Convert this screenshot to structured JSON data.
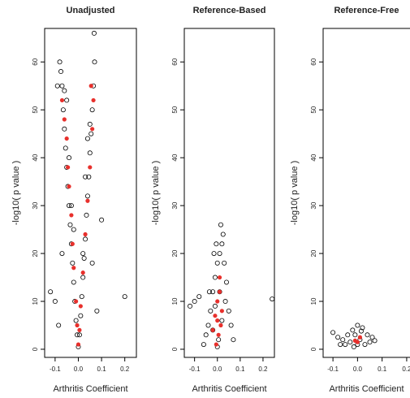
{
  "chart_data": [
    {
      "type": "scatter",
      "title": "Unadjusted",
      "x_label": "Arthritis Coefficient",
      "y_label": "-log10( p value )",
      "xlim": [
        -0.145,
        0.25
      ],
      "ylim": [
        -1.7,
        67
      ],
      "xticks": [
        -0.1,
        {
          "value": 0,
          "label": "0.0"
        },
        0.1,
        0.2
      ],
      "yticks": [
        0,
        10,
        20,
        30,
        40,
        50,
        60
      ],
      "series": [
        {
          "color": "#000000",
          "marker": "open",
          "x": [
            -0.08,
            -0.075,
            -0.07,
            -0.065,
            -0.06,
            -0.055,
            -0.05,
            -0.045,
            -0.04,
            -0.035,
            -0.03,
            -0.025,
            -0.02,
            -0.015,
            -0.01,
            -0.005,
            0,
            0.005,
            0.01,
            0.015,
            0.02,
            0.025,
            0.03,
            0.035,
            0.04,
            0.045,
            0.05,
            0.055,
            0.06,
            0.065,
            0.07,
            0.068,
            -0.06,
            -0.09,
            -0.1,
            -0.12,
            0.1,
            0.2,
            -0.07,
            0.06,
            -0.05,
            0.05,
            -0.04,
            0.04,
            -0.03,
            0.03,
            -0.02,
            0.02,
            0.08,
            -0.085
          ],
          "values": [
            60,
            58,
            55,
            50,
            46,
            42,
            38,
            34,
            30,
            26,
            22,
            18,
            14,
            10,
            6,
            3,
            0.5,
            3,
            7,
            11,
            15,
            19,
            23,
            28,
            32,
            36,
            41,
            45,
            50,
            55,
            60,
            66,
            54,
            55,
            10,
            12,
            27,
            11,
            20,
            18,
            52,
            47,
            40,
            44,
            30,
            36,
            25,
            20,
            8,
            5
          ]
        },
        {
          "color": "#e8302c",
          "marker": "filled",
          "x": [
            -0.07,
            -0.06,
            -0.05,
            -0.045,
            -0.04,
            -0.03,
            -0.025,
            -0.02,
            -0.01,
            -0.005,
            0,
            0.005,
            0.01,
            0.02,
            0.03,
            0.04,
            0.05,
            0.06,
            0.065,
            0.055
          ],
          "values": [
            52,
            48,
            44,
            38,
            34,
            28,
            22,
            17,
            10,
            5,
            1,
            4,
            9,
            16,
            24,
            31,
            38,
            46,
            52,
            55
          ]
        }
      ]
    },
    {
      "type": "scatter",
      "title": "Reference-Based",
      "x_label": "Arthritis Coefficient",
      "y_label": "-log10( p value )",
      "xlim": [
        -0.145,
        0.25
      ],
      "ylim": [
        -1.7,
        67
      ],
      "xticks": [
        -0.1,
        {
          "value": 0,
          "label": "0.0"
        },
        0.1,
        0.2
      ],
      "yticks": [
        0,
        10,
        20,
        30,
        40,
        50,
        60
      ],
      "series": [
        {
          "color": "#000000",
          "marker": "open",
          "x": [
            -0.04,
            -0.03,
            -0.02,
            -0.01,
            0,
            0.01,
            0.02,
            0.03,
            0.04,
            0.05,
            0.06,
            -0.05,
            0.015,
            0.025,
            -0.015,
            -0.005,
            0.005,
            -0.02,
            0.02,
            0.035,
            -0.035,
            -0.1,
            -0.12,
            -0.08,
            0.24,
            0.07,
            -0.06,
            0,
            0.01,
            -0.01
          ],
          "values": [
            5,
            8,
            12,
            15,
            18,
            20,
            22,
            18,
            14,
            8,
            5,
            3,
            26,
            24,
            20,
            22,
            2,
            4,
            6,
            10,
            12,
            10,
            9,
            11,
            10.5,
            2,
            1,
            0.5,
            12,
            9
          ]
        },
        {
          "color": "#e8302c",
          "marker": "filled",
          "x": [
            -0.02,
            -0.01,
            0,
            0.01,
            0.02,
            0.005,
            -0.005,
            0.015,
            0.01,
            0
          ],
          "values": [
            4,
            7,
            10,
            12,
            8,
            3,
            1,
            5,
            15,
            6
          ]
        }
      ]
    },
    {
      "type": "scatter",
      "title": "Reference-Free",
      "x_label": "Arthritis Coefficient",
      "y_label": "-log10( p value )",
      "xlim": [
        -0.14,
        0.23
      ],
      "ylim": [
        -1.7,
        67
      ],
      "xticks": [
        -0.1,
        {
          "value": 0,
          "label": "0.0"
        },
        0.1,
        0.2
      ],
      "yticks": [
        0,
        10,
        20,
        30,
        40,
        50,
        60
      ],
      "series": [
        {
          "color": "#000000",
          "marker": "open",
          "x": [
            -0.1,
            -0.08,
            -0.06,
            -0.04,
            -0.02,
            0,
            0.02,
            0.04,
            0.06,
            0.03,
            -0.03,
            0,
            0.01,
            -0.01,
            0.05,
            -0.05,
            0.015,
            -0.015,
            0.07,
            -0.07
          ],
          "values": [
            3.5,
            2.5,
            2,
            3,
            4,
            5,
            4.5,
            3,
            2.5,
            1,
            1.5,
            1,
            2,
            3,
            1.5,
            1,
            3.8,
            0.5,
            1.8,
            1
          ]
        },
        {
          "color": "#e8302c",
          "marker": "filled",
          "x": [
            0,
            0.01,
            -0.01
          ],
          "values": [
            1.5,
            2.5,
            1.8
          ]
        }
      ]
    }
  ]
}
